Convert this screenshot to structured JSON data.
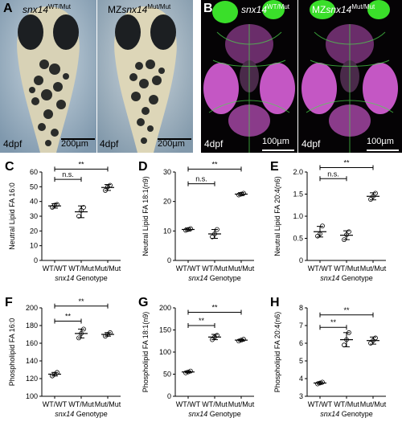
{
  "panel_a": {
    "letter": "A",
    "left_label": {
      "gene": "snx14",
      "sup": "WT/Mut"
    },
    "right_label": {
      "prefix": "MZ",
      "gene": "snx14",
      "sup": "Mut/Mut"
    },
    "stage_left": "4dpf",
    "stage_right": "4dpf",
    "scale_left": "200µm",
    "scale_right": "200µm"
  },
  "panel_b": {
    "letter": "B",
    "left_label": {
      "gene": "snx14",
      "sup": "WT/Mut"
    },
    "right_label": {
      "prefix": "MZ",
      "gene": "snx14",
      "sup": "Mut/Mut"
    },
    "stage_left": "4dpf",
    "stage_right": "4dpf",
    "scale_left": "100µm",
    "scale_right": "100µm"
  },
  "chart_data": [
    {
      "letter": "C",
      "type": "scatter",
      "ylabel": "Neutral Lipid FA 16:0",
      "xlabel_gene": "snx14",
      "xlabel_rest": " Genotype",
      "categories": [
        "WT/WT",
        "WT/Mut",
        "Mut/Mut"
      ],
      "ylim": [
        0,
        60
      ],
      "yticks": [
        0,
        10,
        20,
        30,
        40,
        50,
        60
      ],
      "means": [
        37,
        33,
        49.5
      ],
      "errors": [
        1.5,
        4,
        2
      ],
      "points": [
        [
          36,
          37.5,
          38
        ],
        [
          30,
          34,
          36
        ],
        [
          47.5,
          50,
          51
        ]
      ],
      "sig": [
        {
          "from": 0,
          "to": 1,
          "label": "n.s.",
          "y": 55
        },
        {
          "from": 0,
          "to": 2,
          "label": "**",
          "y": 62
        }
      ]
    },
    {
      "letter": "D",
      "type": "scatter",
      "ylabel": "Neutral Lipid FA 18:1(n9)",
      "xlabel_gene": "snx14",
      "xlabel_rest": " Genotype",
      "categories": [
        "WT/WT",
        "WT/Mut",
        "Mut/Mut"
      ],
      "ylim": [
        0,
        30
      ],
      "yticks": [
        0,
        10,
        20,
        30
      ],
      "means": [
        10.5,
        9,
        22.5
      ],
      "errors": [
        0.5,
        1.5,
        0.5
      ],
      "points": [
        [
          10.2,
          10.5,
          10.8
        ],
        [
          8,
          9,
          10.5
        ],
        [
          22.2,
          22.5,
          22.8
        ]
      ],
      "sig": [
        {
          "from": 0,
          "to": 1,
          "label": "n.s.",
          "y": 26
        },
        {
          "from": 0,
          "to": 2,
          "label": "**",
          "y": 31
        }
      ]
    },
    {
      "letter": "E",
      "type": "scatter",
      "ylabel": "Neutral Lipid FA 20:4(n6)",
      "xlabel_gene": "snx14",
      "xlabel_rest": " Genotype",
      "categories": [
        "WT/WT",
        "WT/Mut",
        "Mut/Mut"
      ],
      "ylim": [
        0,
        2.0
      ],
      "yticks": [
        0,
        0.5,
        1.0,
        1.5,
        2.0
      ],
      "tickLabels": [
        "0",
        "0.5",
        "1.0",
        "1.5",
        "2.0"
      ],
      "means": [
        0.65,
        0.57,
        1.45
      ],
      "errors": [
        0.12,
        0.1,
        0.08
      ],
      "points": [
        [
          0.55,
          0.6,
          0.78
        ],
        [
          0.47,
          0.58,
          0.65
        ],
        [
          1.38,
          1.45,
          1.52
        ]
      ],
      "sig": [
        {
          "from": 0,
          "to": 1,
          "label": "n.s.",
          "y": 1.85
        },
        {
          "from": 0,
          "to": 2,
          "label": "**",
          "y": 2.1
        }
      ]
    },
    {
      "letter": "F",
      "type": "scatter",
      "ylabel": "Phospholipid FA 16:0",
      "xlabel_gene": "snx14",
      "xlabel_rest": " Genotype",
      "categories": [
        "WT/WT",
        "WT/Mut",
        "Mut/Mut"
      ],
      "ylim": [
        100,
        200
      ],
      "yticks": [
        100,
        120,
        140,
        160,
        180,
        200
      ],
      "means": [
        125,
        171,
        170
      ],
      "errors": [
        2,
        5,
        2
      ],
      "points": [
        [
          123,
          125,
          127
        ],
        [
          166,
          171,
          176
        ],
        [
          168,
          170,
          172
        ]
      ],
      "sig": [
        {
          "from": 0,
          "to": 1,
          "label": "**",
          "y": 185
        },
        {
          "from": 0,
          "to": 2,
          "label": "**",
          "y": 202
        }
      ]
    },
    {
      "letter": "G",
      "type": "scatter",
      "ylabel": "Phospholipid FA 18:1(n9)",
      "xlabel_gene": "snx14",
      "xlabel_rest": " Genotype",
      "categories": [
        "WT/WT",
        "WT/Mut",
        "Mut/Mut"
      ],
      "ylim": [
        0,
        200
      ],
      "yticks": [
        0,
        50,
        100,
        150,
        200
      ],
      "means": [
        55,
        134,
        127
      ],
      "errors": [
        2,
        6,
        2
      ],
      "points": [
        [
          53,
          55,
          57
        ],
        [
          128,
          134,
          138
        ],
        [
          125,
          127,
          129
        ]
      ],
      "sig": [
        {
          "from": 0,
          "to": 1,
          "label": "**",
          "y": 160
        },
        {
          "from": 0,
          "to": 2,
          "label": "**",
          "y": 190
        }
      ]
    },
    {
      "letter": "H",
      "type": "scatter",
      "ylabel": "Phospholipid FA 20:4(n6)",
      "xlabel_gene": "snx14",
      "xlabel_rest": " Genotype",
      "categories": [
        "WT/WT",
        "WT/Mut",
        "Mut/Mut"
      ],
      "ylim": [
        3,
        8
      ],
      "yticks": [
        3,
        4,
        5,
        6,
        7,
        8
      ],
      "means": [
        3.75,
        6.2,
        6.15
      ],
      "errors": [
        0.07,
        0.4,
        0.2
      ],
      "points": [
        [
          3.7,
          3.75,
          3.8
        ],
        [
          5.9,
          6.2,
          6.6
        ],
        [
          6.0,
          6.15,
          6.3
        ]
      ],
      "sig": [
        {
          "from": 0,
          "to": 1,
          "label": "**",
          "y": 6.9
        },
        {
          "from": 0,
          "to": 2,
          "label": "**",
          "y": 7.6
        }
      ]
    }
  ]
}
